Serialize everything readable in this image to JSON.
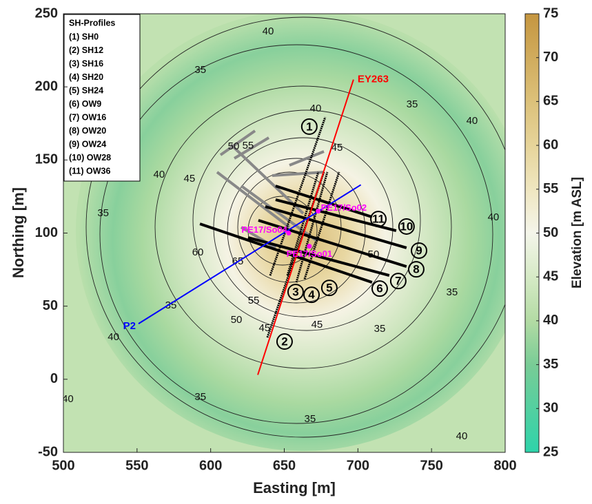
{
  "chart_data": {
    "type": "contour",
    "xlabel": "Easting [m]",
    "ylabel": "Northing [m]",
    "colorbar_label": "Elevation [m ASL]",
    "xlim": [
      500,
      800
    ],
    "ylim": [
      -50,
      250
    ],
    "xticks": [
      500,
      550,
      600,
      650,
      700,
      750,
      800
    ],
    "yticks": [
      -50,
      0,
      50,
      100,
      150,
      200,
      250
    ],
    "clim": [
      25,
      75
    ],
    "cticks": [
      25,
      30,
      35,
      40,
      45,
      50,
      55,
      60,
      65,
      70,
      75
    ],
    "colormap": [
      {
        "value": 25,
        "color": "#2ed3aa"
      },
      {
        "value": 35,
        "color": "#79cc96"
      },
      {
        "value": 40,
        "color": "#b3dba4"
      },
      {
        "value": 45,
        "color": "#d6eac6"
      },
      {
        "value": 50,
        "color": "#f4f5ea"
      },
      {
        "value": 55,
        "color": "#efe6c0"
      },
      {
        "value": 60,
        "color": "#e6d49a"
      },
      {
        "value": 65,
        "color": "#dcc17a"
      },
      {
        "value": 75,
        "color": "#c59640"
      }
    ],
    "legend_title": "SH-Profiles",
    "profiles": [
      {
        "name": "(1) SH0",
        "label": "1",
        "x": [
          640.4,
          677.8
        ],
        "y": [
          71,
          179.3
        ],
        "label_x": 667,
        "label_y": 172.8
      },
      {
        "name": "(2) SH12",
        "label": "2",
        "x": [
          638.5,
          676.9
        ],
        "y": [
          28.6,
          141.7
        ],
        "label_x": 650.2,
        "label_y": 25.8
      },
      {
        "name": "(3) SH16",
        "label": "3",
        "x": [
          652.1,
          673.1
        ],
        "y": [
          71,
          141.7
        ],
        "label_x": 657.7,
        "label_y": 59.7
      },
      {
        "name": "(4) SH20",
        "label": "4",
        "x": [
          658.2,
          679.2
        ],
        "y": [
          66.3,
          141.7
        ],
        "label_x": 668.5,
        "label_y": 57.8
      },
      {
        "name": "(5) SH24",
        "label": "5",
        "x": [
          663.8,
          687.2
        ],
        "y": [
          68.6,
          141.7
        ],
        "label_x": 680.6,
        "label_y": 62.5
      },
      {
        "name": "(6) OW9",
        "label": "6",
        "x": [
          592.7,
          709.6
        ],
        "y": [
          106.3,
          66.3
        ],
        "label_x": 714.8,
        "label_y": 62
      },
      {
        "name": "(7) OW16",
        "label": "7",
        "x": [
          625.4,
          721.3
        ],
        "y": [
          96.9,
          71
        ],
        "label_x": 727.4,
        "label_y": 67.2
      },
      {
        "name": "(8) OW20",
        "label": "8",
        "x": [
          632.4,
          733
        ],
        "y": [
          108.7,
          77.1
        ],
        "label_x": 739.6,
        "label_y": 75.2
      },
      {
        "name": "(9) OW24",
        "label": "9",
        "x": [
          637.1,
          733
        ],
        "y": [
          118.1,
          89.9
        ],
        "label_x": 741.5,
        "label_y": 88
      },
      {
        "name": "(10) OW28",
        "label": "10",
        "x": [
          644.1,
          726
        ],
        "y": [
          122.8,
          101.6
        ],
        "label_x": 733,
        "label_y": 104.5
      },
      {
        "name": "(11) OW36",
        "label": "11",
        "x": [
          644.1,
          709.6
        ],
        "y": [
          132.2,
          111
        ],
        "label_x": 713.9,
        "label_y": 109.6
      }
    ],
    "lines": [
      {
        "name": "EY263",
        "color": "#ff0000",
        "x": [
          632,
          697
        ],
        "y": [
          3,
          205
        ]
      },
      {
        "name": "P2",
        "color": "#0000ff",
        "x": [
          551,
          702
        ],
        "y": [
          38,
          133
        ]
      }
    ],
    "points": [
      {
        "name": "PE17/So02",
        "x": 673,
        "y": 115
      },
      {
        "name": "PE17/So04",
        "x": 653,
        "y": 100
      },
      {
        "name": "PE17/So01",
        "x": 667,
        "y": 91
      }
    ],
    "contour_labels": [
      {
        "level": 40,
        "x": 639,
        "y": 237.8
      },
      {
        "level": 35,
        "x": 593,
        "y": 211.4
      },
      {
        "level": 35,
        "x": 736.8,
        "y": 187.8
      },
      {
        "level": 40,
        "x": 777.5,
        "y": 176.5
      },
      {
        "level": 40,
        "x": 565,
        "y": 139.8
      },
      {
        "level": 35,
        "x": 527,
        "y": 113.4
      },
      {
        "level": 40,
        "x": 792,
        "y": 110.6
      },
      {
        "level": 35,
        "x": 763.9,
        "y": 59.2
      },
      {
        "level": 35,
        "x": 714.8,
        "y": 34.3
      },
      {
        "level": 35,
        "x": 573,
        "y": 50.3
      },
      {
        "level": 40,
        "x": 534,
        "y": 28.6
      },
      {
        "level": 35,
        "x": 593,
        "y": -12.4
      },
      {
        "level": 35,
        "x": 667.5,
        "y": -27.4
      },
      {
        "level": 40,
        "x": 770.5,
        "y": -39.2
      },
      {
        "level": 40,
        "x": 503,
        "y": -13.8
      },
      {
        "level": 40,
        "x": 671.3,
        "y": 185
      },
      {
        "level": 45,
        "x": 685.8,
        "y": 158.1
      },
      {
        "level": 50,
        "x": 615.6,
        "y": 159.1
      },
      {
        "level": 55,
        "x": 625.4,
        "y": 159.6
      },
      {
        "level": 45,
        "x": 585.6,
        "y": 137
      },
      {
        "level": 60,
        "x": 591.3,
        "y": 86.6
      },
      {
        "level": 65,
        "x": 618.4,
        "y": 80.4
      },
      {
        "level": 55,
        "x": 629.2,
        "y": 53.6
      },
      {
        "level": 50,
        "x": 617.5,
        "y": 40.4
      },
      {
        "level": 45,
        "x": 672.2,
        "y": 37.1
      },
      {
        "level": 45,
        "x": 636.6,
        "y": 34.7
      },
      {
        "level": 50,
        "x": 710.6,
        "y": 85.1
      }
    ]
  }
}
